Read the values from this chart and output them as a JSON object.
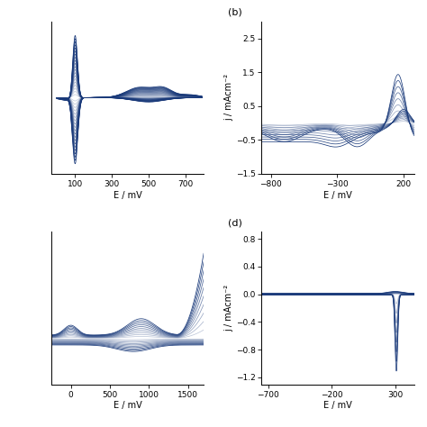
{
  "fig_size": [
    4.74,
    4.74
  ],
  "dpi": 100,
  "line_color": "#1a3a7a",
  "background": "white",
  "subplots": {
    "a": {
      "xlabel": "E / mV",
      "ylabel": "",
      "xlim": [
        -30,
        800
      ],
      "ylim": [
        -1.05,
        1.05
      ],
      "xticks": [
        100.0,
        300.0,
        500.0,
        700.0
      ],
      "yticks": [],
      "n_cycles": 20
    },
    "b": {
      "label": "(b)",
      "xlabel": "E / mV",
      "ylabel": "j / mAcm⁻²",
      "xlim": [
        -870,
        280
      ],
      "ylim": [
        -1.5,
        3.0
      ],
      "xticks": [
        -800,
        -300,
        200
      ],
      "yticks": [
        -1.5,
        -0.5,
        0.5,
        1.5,
        2.5
      ],
      "n_cycles": 8
    },
    "c": {
      "xlabel": "E / mV",
      "ylabel": "",
      "xlim": [
        -250,
        1700
      ],
      "ylim": [
        -0.28,
        0.65
      ],
      "xticks": [
        0,
        500,
        1000,
        1500
      ],
      "yticks": [],
      "n_cycles": 10
    },
    "d": {
      "label": "(d)",
      "xlabel": "E / mV",
      "ylabel": "j / mAcm⁻²",
      "xlim": [
        -750,
        450
      ],
      "ylim": [
        -1.3,
        0.9
      ],
      "xticks": [
        -700,
        -200,
        300
      ],
      "yticks": [
        -1.2,
        -0.8,
        -0.4,
        0.0,
        0.4,
        0.8
      ],
      "n_cycles": 8
    }
  }
}
